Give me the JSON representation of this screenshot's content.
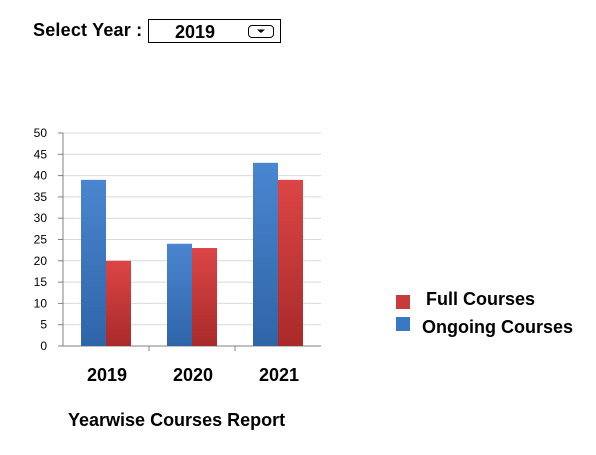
{
  "filter": {
    "label": "Select Year :",
    "selected_value": "2019",
    "dropdown_icon": "chevron-down-icon"
  },
  "report": {
    "title": "Yearwise Courses Report"
  },
  "colors": {
    "full_courses": "#c93a3a",
    "ongoing_courses": "#3a78c4",
    "grid": "#d9d9d9",
    "axis": "#808080"
  },
  "chart_data": {
    "type": "bar",
    "categories": [
      "2019",
      "2020",
      "2021"
    ],
    "series": [
      {
        "name": "Ongoing Courses",
        "values": [
          39,
          24,
          43
        ]
      },
      {
        "name": "Full Courses",
        "values": [
          20,
          23,
          39
        ]
      }
    ],
    "title": "Yearwise Courses Report",
    "xlabel": "",
    "ylabel": "",
    "ylim": [
      0,
      50
    ],
    "yticks": [
      "0",
      "5",
      "10",
      "15",
      "20",
      "25",
      "30",
      "35",
      "40",
      "45",
      "50"
    ],
    "grid": true,
    "legend_position": "right"
  },
  "legend": {
    "items": [
      {
        "label": "Full Courses",
        "series": "Full Courses"
      },
      {
        "label": "Ongoing Courses",
        "series": "Ongoing Courses"
      }
    ]
  }
}
